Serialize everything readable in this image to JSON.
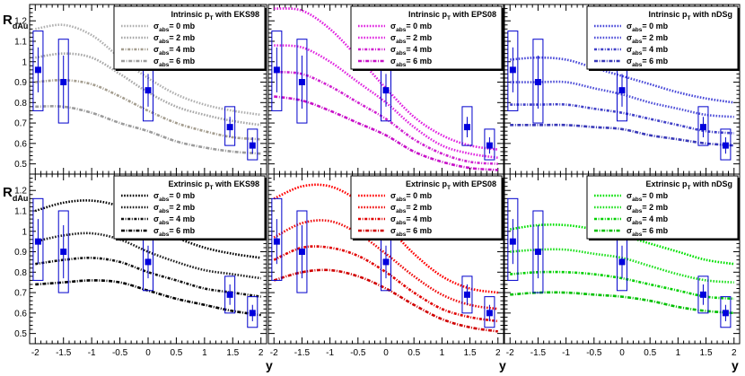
{
  "figure": {
    "ylabel_main": "R",
    "ylabel_sub": "dAu",
    "xlabel": "y",
    "x_ticks": [
      "-2",
      "-1.5",
      "-1",
      "-0.5",
      "0",
      "0.5",
      "1",
      "1.5",
      "2"
    ],
    "y_ticks": [
      "0.5",
      "0.6",
      "0.7",
      "0.8",
      "0.9",
      "1",
      "1.1",
      "1.2"
    ],
    "legend_prefix": "σ",
    "legend_sub": "abs"
  },
  "chart_data": [
    {
      "type": "line",
      "title": "Intrinsic p_T with EKS98",
      "title_main": "Intrinsic p",
      "title_sub": "T",
      "title_rest": " with EKS98",
      "xlim": [
        -2.1,
        2.1
      ],
      "ylim": [
        0.45,
        1.28
      ],
      "xlabel": "",
      "ylabel": "R_dAu",
      "series": [
        {
          "name": "σ_abs = 0 mb",
          "label": "= 0 mb",
          "color": "#b0b0b0",
          "dash": "1.6,1.6",
          "x": [
            -2,
            -1.5,
            -1,
            -0.5,
            0,
            0.5,
            1,
            1.5,
            2
          ],
          "y": [
            1.16,
            1.18,
            1.13,
            1.02,
            0.92,
            0.84,
            0.79,
            0.76,
            0.74
          ]
        },
        {
          "name": "σ_abs = 2 mb",
          "label": "= 2 mb",
          "color": "#a8a8a8",
          "dash": "1.6,1.6",
          "x": [
            -2,
            -1.5,
            -1,
            -0.5,
            0,
            0.5,
            1,
            1.5,
            2
          ],
          "y": [
            1.02,
            1.04,
            1.02,
            0.94,
            0.85,
            0.78,
            0.74,
            0.71,
            0.69
          ]
        },
        {
          "name": "σ_abs = 4 mb",
          "label": "= 4 mb",
          "color": "#a49d8f",
          "dash": "3,1.6,1,1.6",
          "x": [
            -2,
            -1.5,
            -1,
            -0.5,
            0,
            0.5,
            1,
            1.5,
            2
          ],
          "y": [
            0.9,
            0.91,
            0.89,
            0.83,
            0.76,
            0.7,
            0.66,
            0.63,
            0.62
          ]
        },
        {
          "name": "σ_abs = 6 mb",
          "label": "= 6 mb",
          "color": "#9c9c9c",
          "dash": "4,1.6,1,1.6",
          "x": [
            -2,
            -1.5,
            -1,
            -0.5,
            0,
            0.5,
            1,
            1.5,
            2
          ],
          "y": [
            0.78,
            0.78,
            0.75,
            0.7,
            0.66,
            0.61,
            0.58,
            0.56,
            0.55
          ]
        }
      ],
      "data_points": {
        "x": [
          -1.95,
          -1.5,
          0,
          1.45,
          1.85
        ],
        "y": [
          0.96,
          0.9,
          0.86,
          0.68,
          0.59
        ],
        "stat_err": [
          0.11,
          0.13,
          0.08,
          0.05,
          0.04
        ],
        "sys_low": [
          0.76,
          0.7,
          0.71,
          0.59,
          0.52
        ],
        "sys_high": [
          1.15,
          1.11,
          1.0,
          0.78,
          0.67
        ]
      }
    },
    {
      "type": "line",
      "title": "Intrinsic p_T with EPS08",
      "title_main": "Intrinsic p",
      "title_sub": "T",
      "title_rest": " with EPS08",
      "xlim": [
        -2.1,
        2.1
      ],
      "ylim": [
        0.45,
        1.28
      ],
      "xlabel": "",
      "ylabel": "",
      "series": [
        {
          "name": "σ_abs = 0 mb",
          "label": "= 0 mb",
          "color": "#e020e0",
          "dash": "1.6,1.6",
          "x": [
            -2,
            -1.5,
            -1,
            -0.5,
            0,
            0.5,
            1,
            1.5,
            2
          ],
          "y": [
            1.26,
            1.25,
            1.16,
            1.02,
            0.87,
            0.73,
            0.64,
            0.59,
            0.57
          ]
        },
        {
          "name": "σ_abs = 2 mb",
          "label": "= 2 mb",
          "color": "#e028e0",
          "dash": "1.6,1.6",
          "x": [
            -2,
            -1.5,
            -1,
            -0.5,
            0,
            0.5,
            1,
            1.5,
            2
          ],
          "y": [
            1.08,
            1.07,
            1.0,
            0.9,
            0.8,
            0.68,
            0.59,
            0.55,
            0.53
          ]
        },
        {
          "name": "σ_abs = 4 mb",
          "label": "= 4 mb",
          "color": "#d020d0",
          "dash": "3,1.6,1,1.6",
          "x": [
            -2,
            -1.5,
            -1,
            -0.5,
            0,
            0.5,
            1,
            1.5,
            2
          ],
          "y": [
            0.95,
            0.94,
            0.88,
            0.8,
            0.72,
            0.62,
            0.55,
            0.51,
            0.5
          ]
        },
        {
          "name": "σ_abs = 6 mb",
          "label": "= 6 mb",
          "color": "#c810c8",
          "dash": "4,1.6,1,1.6",
          "x": [
            -2,
            -1.5,
            -1,
            -0.5,
            0,
            0.5,
            1,
            1.5,
            2
          ],
          "y": [
            0.83,
            0.81,
            0.76,
            0.7,
            0.64,
            0.56,
            0.51,
            0.48,
            0.47
          ]
        }
      ],
      "data_points": {
        "x": [
          -1.95,
          -1.5,
          0,
          1.45,
          1.85
        ],
        "y": [
          0.96,
          0.9,
          0.86,
          0.68,
          0.59
        ],
        "stat_err": [
          0.11,
          0.13,
          0.08,
          0.05,
          0.04
        ],
        "sys_low": [
          0.76,
          0.7,
          0.71,
          0.59,
          0.52
        ],
        "sys_high": [
          1.15,
          1.11,
          1.0,
          0.78,
          0.67
        ]
      }
    },
    {
      "type": "line",
      "title": "Intrinsic p_T with nDSg",
      "title_main": "Intrinsic p",
      "title_sub": "T",
      "title_rest": " with nDSg",
      "xlim": [
        -2.1,
        2.1
      ],
      "ylim": [
        0.45,
        1.28
      ],
      "xlabel": "",
      "ylabel": "",
      "series": [
        {
          "name": "σ_abs = 0 mb",
          "label": "= 0 mb",
          "color": "#4848d8",
          "dash": "1.6,1.6",
          "x": [
            -2,
            -1.5,
            -1,
            -0.5,
            0,
            0.5,
            1,
            1.5,
            2
          ],
          "y": [
            1.01,
            1.02,
            1.01,
            0.97,
            0.93,
            0.89,
            0.85,
            0.82,
            0.8
          ]
        },
        {
          "name": "σ_abs = 2 mb",
          "label": "= 2 mb",
          "color": "#5050d8",
          "dash": "1.6,1.6",
          "x": [
            -2,
            -1.5,
            -1,
            -0.5,
            0,
            0.5,
            1,
            1.5,
            2
          ],
          "y": [
            0.9,
            0.9,
            0.9,
            0.87,
            0.84,
            0.8,
            0.77,
            0.74,
            0.73
          ]
        },
        {
          "name": "σ_abs = 4 mb",
          "label": "= 4 mb",
          "color": "#4040c8",
          "dash": "3,1.6,1,1.6",
          "x": [
            -2,
            -1.5,
            -1,
            -0.5,
            0,
            0.5,
            1,
            1.5,
            2
          ],
          "y": [
            0.79,
            0.79,
            0.79,
            0.77,
            0.75,
            0.72,
            0.69,
            0.66,
            0.65
          ]
        },
        {
          "name": "σ_abs = 6 mb",
          "label": "= 6 mb",
          "color": "#3838b8",
          "dash": "4,1.6,1,1.6",
          "x": [
            -2,
            -1.5,
            -1,
            -0.5,
            0,
            0.5,
            1,
            1.5,
            2
          ],
          "y": [
            0.69,
            0.69,
            0.69,
            0.68,
            0.67,
            0.64,
            0.62,
            0.6,
            0.59
          ]
        }
      ],
      "data_points": {
        "x": [
          -1.95,
          -1.5,
          0,
          1.45,
          1.85
        ],
        "y": [
          0.96,
          0.9,
          0.86,
          0.68,
          0.59
        ],
        "stat_err": [
          0.11,
          0.13,
          0.08,
          0.05,
          0.04
        ],
        "sys_low": [
          0.76,
          0.7,
          0.71,
          0.59,
          0.52
        ],
        "sys_high": [
          1.15,
          1.11,
          1.0,
          0.78,
          0.67
        ]
      }
    },
    {
      "type": "line",
      "title": "Extrinsic p_T with EKS98",
      "title_main": "Extrinsic p",
      "title_sub": "T",
      "title_rest": " with EKS98",
      "xlim": [
        -2.1,
        2.1
      ],
      "ylim": [
        0.45,
        1.28
      ],
      "xlabel": "y",
      "ylabel": "R_dAu",
      "series": [
        {
          "name": "σ_abs = 0 mb",
          "label": "= 0 mb",
          "color": "#000000",
          "dash": "1.6,1.6",
          "x": [
            -2,
            -1.5,
            -1,
            -0.5,
            0,
            0.5,
            1,
            1.5,
            2
          ],
          "y": [
            1.1,
            1.14,
            1.15,
            1.12,
            1.04,
            0.97,
            0.92,
            0.89,
            0.87
          ]
        },
        {
          "name": "σ_abs = 2 mb",
          "label": "= 2 mb",
          "color": "#202020",
          "dash": "1.6,1.6",
          "x": [
            -2,
            -1.5,
            -1,
            -0.5,
            0,
            0.5,
            1,
            1.5,
            2
          ],
          "y": [
            0.95,
            0.98,
            0.99,
            0.96,
            0.9,
            0.85,
            0.81,
            0.79,
            0.77
          ]
        },
        {
          "name": "σ_abs = 4 mb",
          "label": "= 4 mb",
          "color": "#101010",
          "dash": "3,1.6,1,1.6",
          "x": [
            -2,
            -1.5,
            -1,
            -0.5,
            0,
            0.5,
            1,
            1.5,
            2
          ],
          "y": [
            0.84,
            0.86,
            0.87,
            0.85,
            0.8,
            0.76,
            0.72,
            0.7,
            0.68
          ]
        },
        {
          "name": "σ_abs = 6 mb",
          "label": "= 6 mb",
          "color": "#000000",
          "dash": "4,1.6,1,1.6",
          "x": [
            -2,
            -1.5,
            -1,
            -0.5,
            0,
            0.5,
            1,
            1.5,
            2
          ],
          "y": [
            0.74,
            0.75,
            0.76,
            0.75,
            0.71,
            0.67,
            0.64,
            0.61,
            0.59
          ]
        }
      ],
      "data_points": {
        "x": [
          -1.95,
          -1.5,
          0,
          1.45,
          1.85
        ],
        "y": [
          0.95,
          0.9,
          0.85,
          0.69,
          0.6
        ],
        "stat_err": [
          0.11,
          0.13,
          0.08,
          0.05,
          0.04
        ],
        "sys_low": [
          0.76,
          0.7,
          0.71,
          0.6,
          0.53
        ],
        "sys_high": [
          1.16,
          1.1,
          0.99,
          0.78,
          0.68
        ]
      }
    },
    {
      "type": "line",
      "title": "Extrinsic p_T with EPS08",
      "title_main": "Extrinsic p",
      "title_sub": "T",
      "title_rest": " with EPS08",
      "xlim": [
        -2.1,
        2.1
      ],
      "ylim": [
        0.45,
        1.28
      ],
      "xlabel": "y",
      "ylabel": "",
      "series": [
        {
          "name": "σ_abs = 0 mb",
          "label": "= 0 mb",
          "color": "#ff0000",
          "dash": "1.6,1.6",
          "x": [
            -2,
            -1.5,
            -1,
            -0.5,
            0,
            0.5,
            1,
            1.5,
            2
          ],
          "y": [
            1.16,
            1.22,
            1.22,
            1.15,
            1.03,
            0.89,
            0.78,
            0.72,
            0.7
          ]
        },
        {
          "name": "σ_abs = 2 mb",
          "label": "= 2 mb",
          "color": "#f01010",
          "dash": "1.6,1.6",
          "x": [
            -2,
            -1.5,
            -1,
            -0.5,
            0,
            0.5,
            1,
            1.5,
            2
          ],
          "y": [
            0.97,
            1.04,
            1.05,
            0.99,
            0.89,
            0.78,
            0.69,
            0.64,
            0.62
          ]
        },
        {
          "name": "σ_abs = 4 mb",
          "label": "= 4 mb",
          "color": "#e00000",
          "dash": "3,1.6,1,1.6",
          "x": [
            -2,
            -1.5,
            -1,
            -0.5,
            0,
            0.5,
            1,
            1.5,
            2
          ],
          "y": [
            0.86,
            0.92,
            0.92,
            0.88,
            0.8,
            0.7,
            0.62,
            0.58,
            0.56
          ]
        },
        {
          "name": "σ_abs = 6 mb",
          "label": "= 6 mb",
          "color": "#d00000",
          "dash": "4,1.6,1,1.6",
          "x": [
            -2,
            -1.5,
            -1,
            -0.5,
            0,
            0.5,
            1,
            1.5,
            2
          ],
          "y": [
            0.76,
            0.8,
            0.81,
            0.78,
            0.72,
            0.64,
            0.57,
            0.53,
            0.51
          ]
        }
      ],
      "data_points": {
        "x": [
          -1.95,
          -1.5,
          0,
          1.45,
          1.85
        ],
        "y": [
          0.95,
          0.9,
          0.85,
          0.69,
          0.6
        ],
        "stat_err": [
          0.11,
          0.13,
          0.08,
          0.05,
          0.04
        ],
        "sys_low": [
          0.76,
          0.7,
          0.71,
          0.6,
          0.53
        ],
        "sys_high": [
          1.16,
          1.1,
          0.99,
          0.78,
          0.68
        ]
      }
    },
    {
      "type": "line",
      "title": "Extrinsic p_T with nDSg",
      "title_main": "Extrinsic p",
      "title_sub": "T",
      "title_rest": " with nDSg",
      "xlim": [
        -2.1,
        2.1
      ],
      "ylim": [
        0.45,
        1.28
      ],
      "xlabel": "y",
      "ylabel": "",
      "series": [
        {
          "name": "σ_abs = 0 mb",
          "label": "= 0 mb",
          "color": "#00e000",
          "dash": "1.6,1.6",
          "x": [
            -2,
            -1.5,
            -1,
            -0.5,
            0,
            0.5,
            1,
            1.5,
            2
          ],
          "y": [
            1.01,
            1.03,
            1.03,
            1.01,
            0.98,
            0.94,
            0.9,
            0.86,
            0.84
          ]
        },
        {
          "name": "σ_abs = 2 mb",
          "label": "= 2 mb",
          "color": "#20e020",
          "dash": "1.6,1.6",
          "x": [
            -2,
            -1.5,
            -1,
            -0.5,
            0,
            0.5,
            1,
            1.5,
            2
          ],
          "y": [
            0.9,
            0.91,
            0.91,
            0.89,
            0.87,
            0.83,
            0.79,
            0.76,
            0.75
          ]
        },
        {
          "name": "σ_abs = 4 mb",
          "label": "= 4 mb",
          "color": "#00d000",
          "dash": "3,1.6,1,1.6",
          "x": [
            -2,
            -1.5,
            -1,
            -0.5,
            0,
            0.5,
            1,
            1.5,
            2
          ],
          "y": [
            0.79,
            0.8,
            0.8,
            0.79,
            0.77,
            0.74,
            0.71,
            0.68,
            0.67
          ]
        },
        {
          "name": "σ_abs = 6 mb",
          "label": "= 6 mb",
          "color": "#00c000",
          "dash": "4,1.6,1,1.6",
          "x": [
            -2,
            -1.5,
            -1,
            -0.5,
            0,
            0.5,
            1,
            1.5,
            2
          ],
          "y": [
            0.69,
            0.7,
            0.7,
            0.69,
            0.68,
            0.66,
            0.63,
            0.61,
            0.6
          ]
        }
      ],
      "data_points": {
        "x": [
          -1.95,
          -1.5,
          0,
          1.45,
          1.85
        ],
        "y": [
          0.95,
          0.9,
          0.85,
          0.69,
          0.6
        ],
        "stat_err": [
          0.11,
          0.13,
          0.08,
          0.05,
          0.04
        ],
        "sys_low": [
          0.76,
          0.7,
          0.71,
          0.6,
          0.53
        ],
        "sys_high": [
          1.16,
          1.1,
          0.99,
          0.78,
          0.68
        ]
      }
    }
  ]
}
